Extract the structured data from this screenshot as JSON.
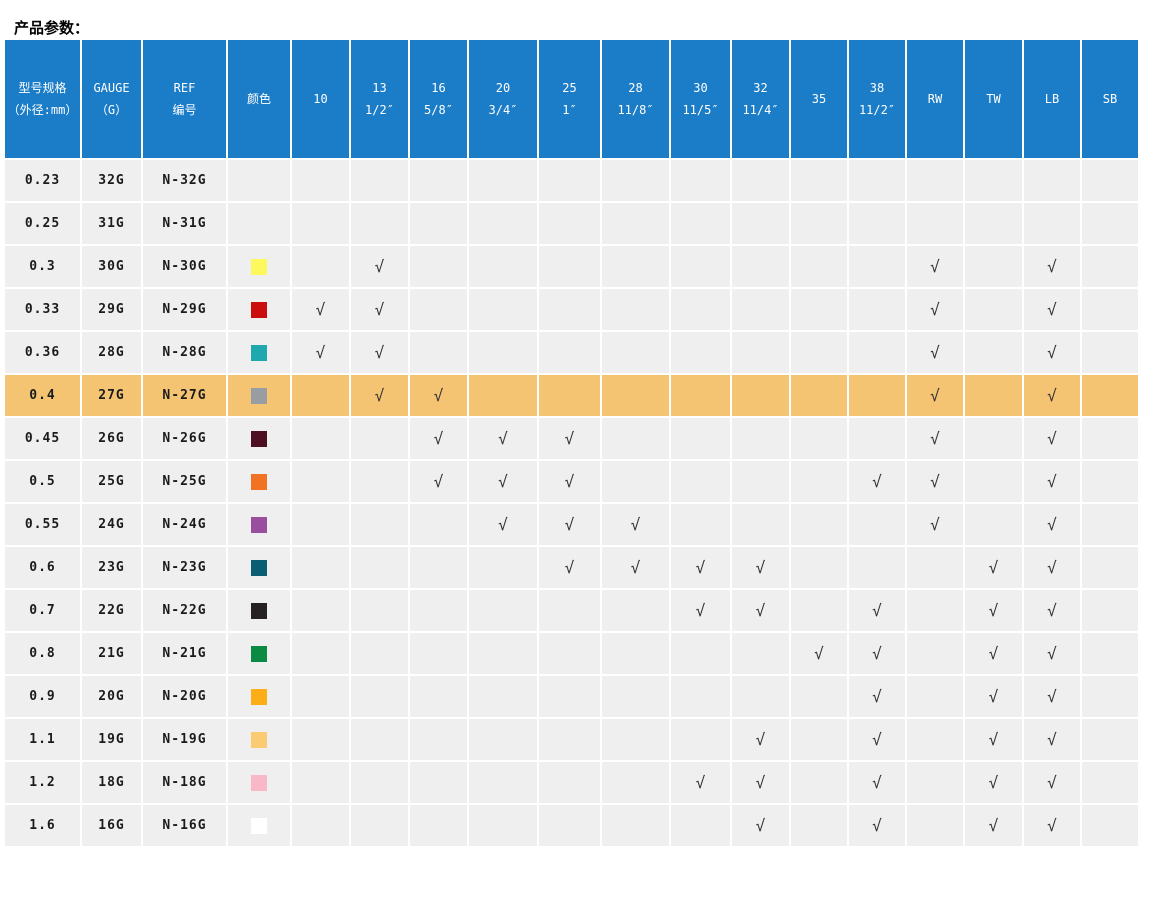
{
  "page_title": "产品参数：",
  "colors": {
    "header_bg": "#1B7CC8",
    "header_text": "#FFFFFF",
    "row_bg": "#F0EFEF",
    "highlight_bg": "#F4C473",
    "check_color": "#333333"
  },
  "table": {
    "check_glyph": "√",
    "columns": [
      {
        "key": "size",
        "lines": [
          "型号规格",
          "（外径:mm）"
        ]
      },
      {
        "key": "gauge",
        "lines": [
          "GAUGE",
          "（G）"
        ]
      },
      {
        "key": "ref",
        "lines": [
          "REF",
          "编号"
        ]
      },
      {
        "key": "color",
        "lines": [
          "颜色"
        ]
      },
      {
        "key": "c10",
        "lines": [
          "10"
        ]
      },
      {
        "key": "c13",
        "lines": [
          "13",
          "1/2″"
        ]
      },
      {
        "key": "c16",
        "lines": [
          "16",
          "5/8″"
        ]
      },
      {
        "key": "c20",
        "lines": [
          "20",
          "3/4″"
        ]
      },
      {
        "key": "c25",
        "lines": [
          "25",
          "1″"
        ]
      },
      {
        "key": "c28",
        "lines": [
          "28",
          "11/8″"
        ]
      },
      {
        "key": "c30",
        "lines": [
          "30",
          "11/5″"
        ]
      },
      {
        "key": "c32",
        "lines": [
          "32",
          "11/4″"
        ]
      },
      {
        "key": "c35",
        "lines": [
          "35"
        ]
      },
      {
        "key": "c38",
        "lines": [
          "38",
          "11/2″"
        ]
      },
      {
        "key": "rw",
        "lines": [
          "RW"
        ]
      },
      {
        "key": "tw",
        "lines": [
          "TW"
        ]
      },
      {
        "key": "lb",
        "lines": [
          "LB"
        ]
      },
      {
        "key": "sb",
        "lines": [
          "SB"
        ]
      }
    ],
    "check_columns": [
      "c10",
      "c13",
      "c16",
      "c20",
      "c25",
      "c28",
      "c30",
      "c32",
      "c35",
      "c38",
      "rw",
      "tw",
      "lb",
      "sb"
    ],
    "rows": [
      {
        "size": "0.23",
        "gauge": "32G",
        "ref": "N-32G",
        "color": null,
        "checks": [],
        "highlight": false
      },
      {
        "size": "0.25",
        "gauge": "31G",
        "ref": "N-31G",
        "color": null,
        "checks": [],
        "highlight": false
      },
      {
        "size": "0.3",
        "gauge": "30G",
        "ref": "N-30G",
        "color": "#FCF95F",
        "checks": [
          "c13",
          "rw",
          "lb"
        ],
        "highlight": false
      },
      {
        "size": "0.33",
        "gauge": "29G",
        "ref": "N-29G",
        "color": "#CC0D0D",
        "checks": [
          "c10",
          "c13",
          "rw",
          "lb"
        ],
        "highlight": false
      },
      {
        "size": "0.36",
        "gauge": "28G",
        "ref": "N-28G",
        "color": "#1FA9AE",
        "checks": [
          "c10",
          "c13",
          "rw",
          "lb"
        ],
        "highlight": false
      },
      {
        "size": "0.4",
        "gauge": "27G",
        "ref": "N-27G",
        "color": "#989DA3",
        "checks": [
          "c13",
          "c16",
          "rw",
          "lb"
        ],
        "highlight": true
      },
      {
        "size": "0.45",
        "gauge": "26G",
        "ref": "N-26G",
        "color": "#4D0F21",
        "checks": [
          "c16",
          "c20",
          "c25",
          "rw",
          "lb"
        ],
        "highlight": false
      },
      {
        "size": "0.5",
        "gauge": "25G",
        "ref": "N-25G",
        "color": "#F07222",
        "checks": [
          "c16",
          "c20",
          "c25",
          "c38",
          "rw",
          "lb"
        ],
        "highlight": false
      },
      {
        "size": "0.55",
        "gauge": "24G",
        "ref": "N-24G",
        "color": "#9A4F9E",
        "checks": [
          "c20",
          "c25",
          "c28",
          "rw",
          "lb"
        ],
        "highlight": false
      },
      {
        "size": "0.6",
        "gauge": "23G",
        "ref": "N-23G",
        "color": "#0B5D72",
        "checks": [
          "c25",
          "c28",
          "c30",
          "c32",
          "tw",
          "lb"
        ],
        "highlight": false
      },
      {
        "size": "0.7",
        "gauge": "22G",
        "ref": "N-22G",
        "color": "#262122",
        "checks": [
          "c30",
          "c32",
          "c38",
          "tw",
          "lb"
        ],
        "highlight": false
      },
      {
        "size": "0.8",
        "gauge": "21G",
        "ref": "N-21G",
        "color": "#0B8A44",
        "checks": [
          "c35",
          "c38",
          "tw",
          "lb"
        ],
        "highlight": false
      },
      {
        "size": "0.9",
        "gauge": "20G",
        "ref": "N-20G",
        "color": "#FBAE17",
        "checks": [
          "c38",
          "tw",
          "lb"
        ],
        "highlight": false
      },
      {
        "size": "1.1",
        "gauge": "19G",
        "ref": "N-19G",
        "color": "#FBCB74",
        "checks": [
          "c32",
          "c38",
          "tw",
          "lb"
        ],
        "highlight": false
      },
      {
        "size": "1.2",
        "gauge": "18G",
        "ref": "N-18G",
        "color": "#F8B8C8",
        "checks": [
          "c30",
          "c32",
          "c38",
          "tw",
          "lb"
        ],
        "highlight": false
      },
      {
        "size": "1.6",
        "gauge": "16G",
        "ref": "N-16G",
        "color": "#FFFFFF",
        "checks": [
          "c32",
          "c38",
          "tw",
          "lb"
        ],
        "highlight": false
      }
    ]
  }
}
